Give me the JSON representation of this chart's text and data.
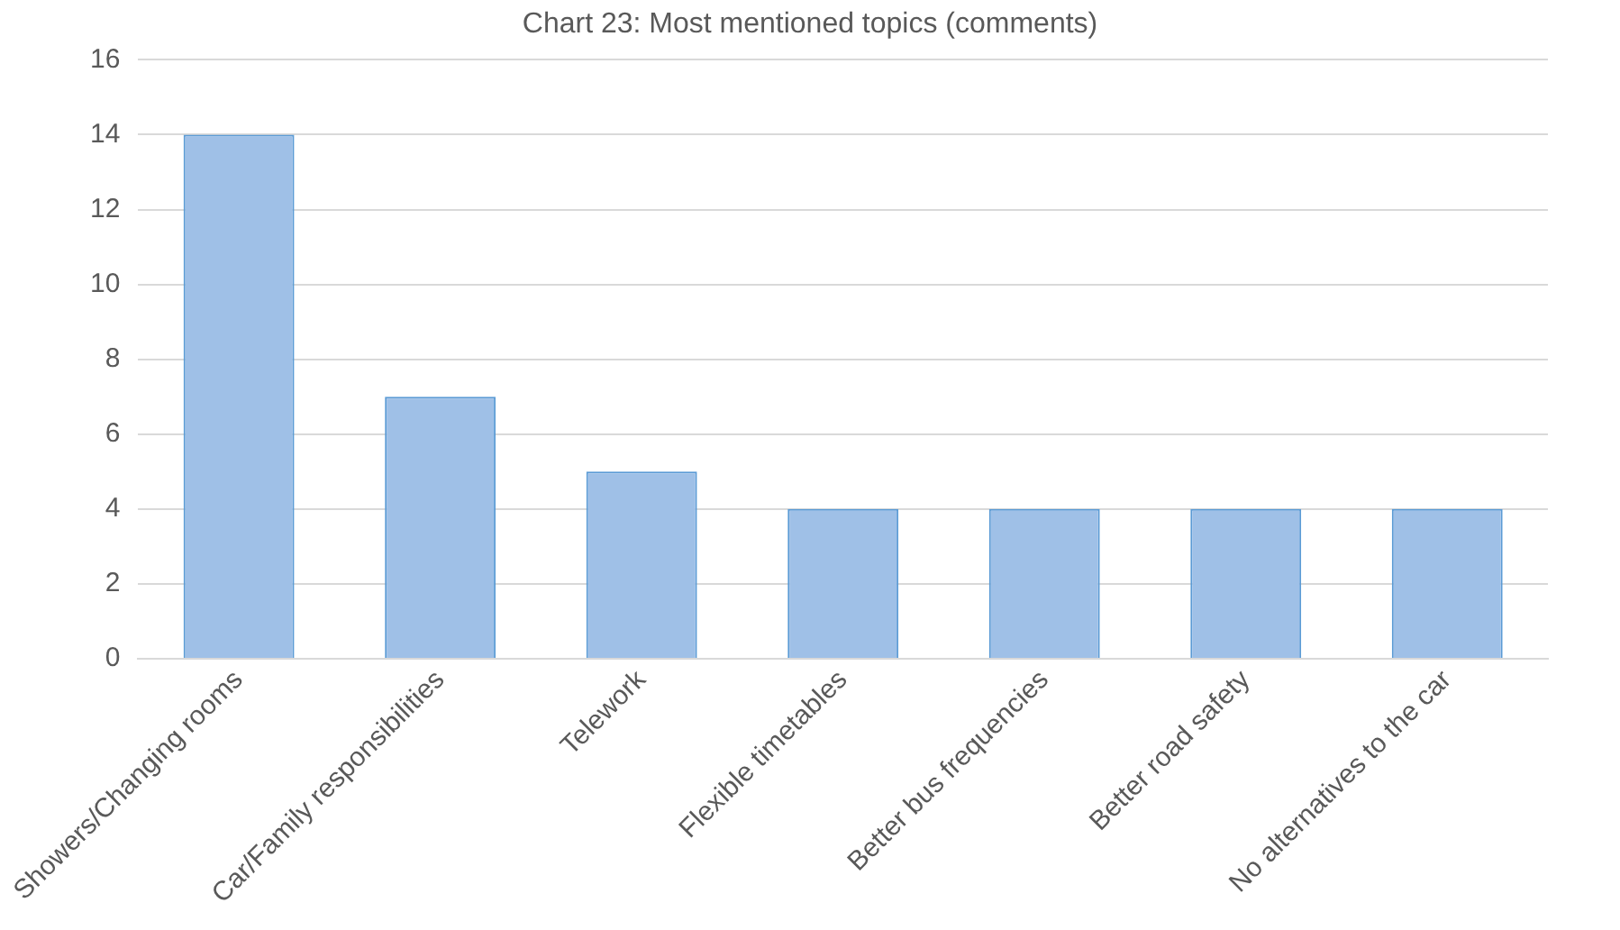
{
  "chart_data": {
    "type": "bar",
    "title": "Chart 23: Most mentioned topics (comments)",
    "categories": [
      "Showers/Changing rooms",
      "Car/Family responsibilities",
      "Telework",
      "Flexible timetables",
      "Better bus frequencies",
      "Better road safety",
      "No alternatives to the car"
    ],
    "values": [
      14,
      7,
      5,
      4,
      4,
      4,
      4
    ],
    "color": "#9fc0e7",
    "ylim": [
      0,
      16
    ],
    "yticks": [
      0,
      2,
      4,
      6,
      8,
      10,
      12,
      14,
      16
    ],
    "grid": "y"
  }
}
